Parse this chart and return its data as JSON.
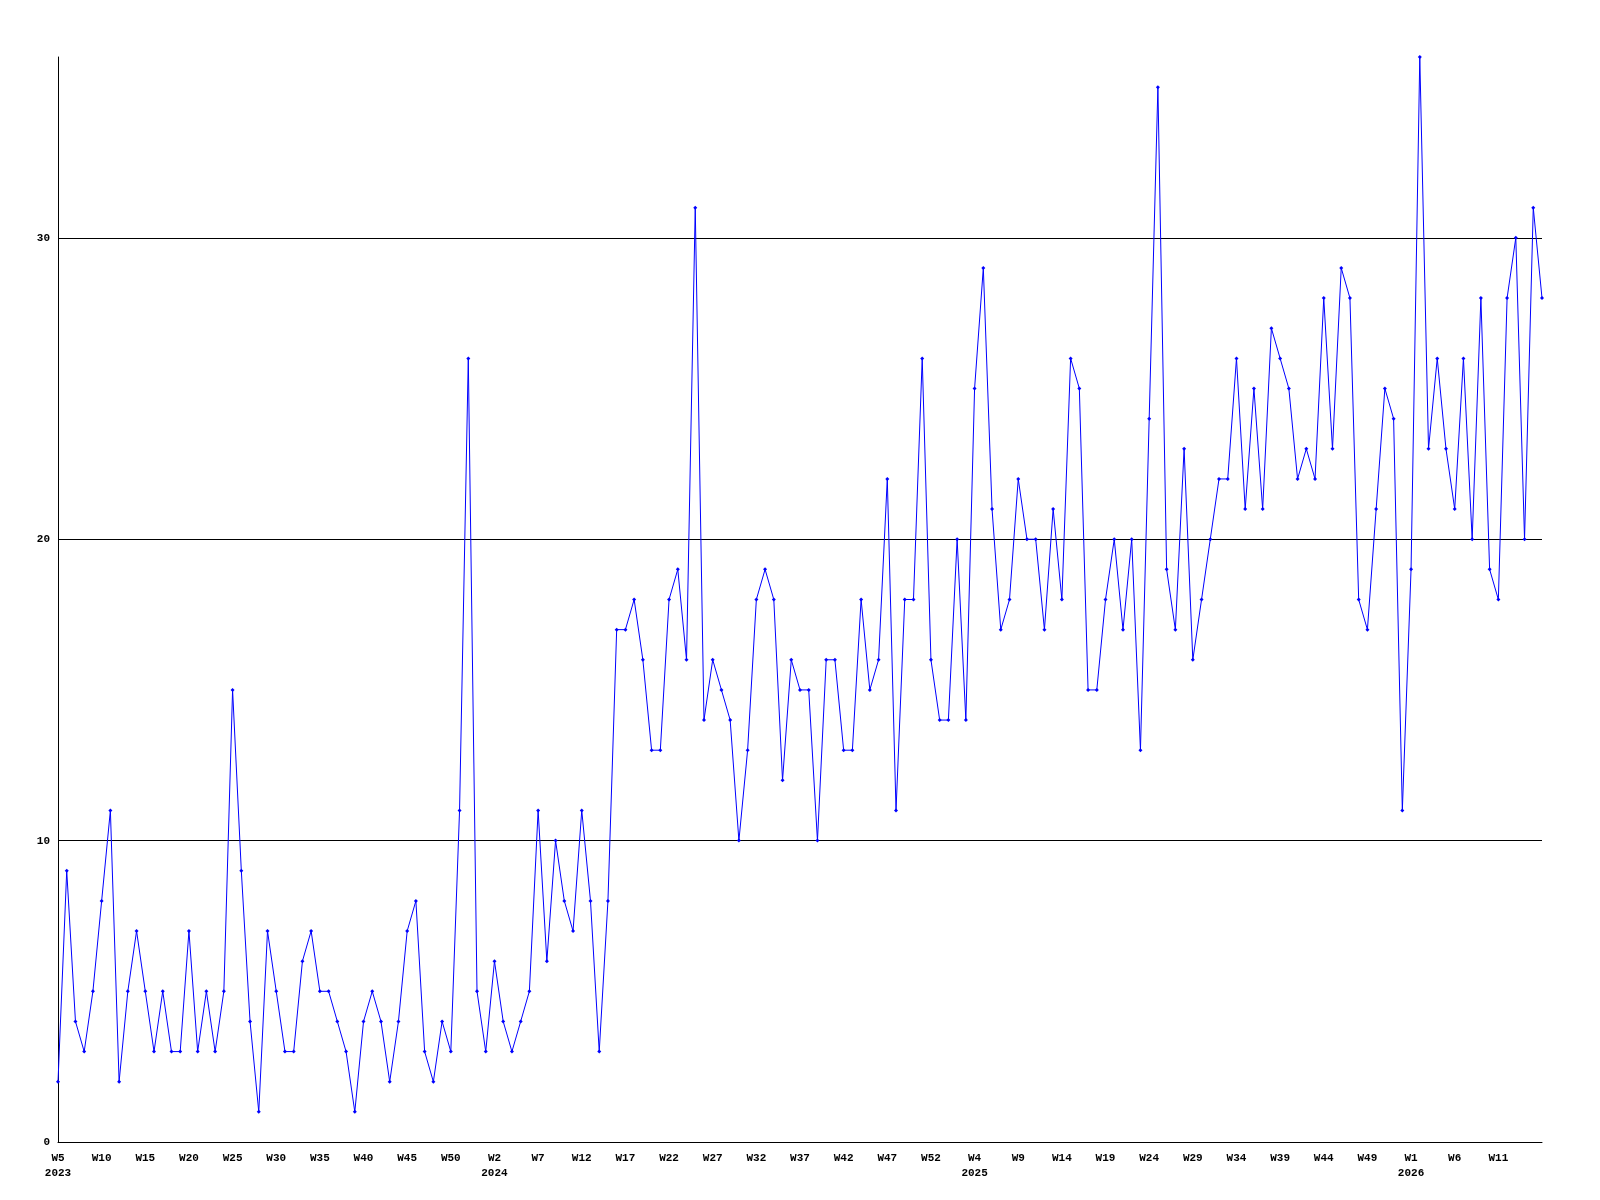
{
  "chart_data": {
    "type": "line",
    "categories": [
      "W5\n2023",
      null,
      null,
      null,
      null,
      "W10",
      null,
      null,
      null,
      null,
      "W15",
      null,
      null,
      null,
      null,
      "W20",
      null,
      null,
      null,
      null,
      "W25",
      null,
      null,
      null,
      null,
      "W30",
      null,
      null,
      null,
      null,
      "W35",
      null,
      null,
      null,
      null,
      "W40",
      null,
      null,
      null,
      null,
      "W45",
      null,
      null,
      null,
      null,
      "W50",
      null,
      null,
      null,
      null,
      "W2\n2024",
      null,
      null,
      null,
      null,
      "W7",
      null,
      null,
      null,
      null,
      "W12",
      null,
      null,
      null,
      null,
      "W17",
      null,
      null,
      null,
      null,
      "W22",
      null,
      null,
      null,
      null,
      "W27",
      null,
      null,
      null,
      null,
      "W32",
      null,
      null,
      null,
      null,
      "W37",
      null,
      null,
      null,
      null,
      "W42",
      null,
      null,
      null,
      null,
      "W47",
      null,
      null,
      null,
      null,
      "W52",
      null,
      null,
      null,
      null,
      "W4\n2025",
      null,
      null,
      null,
      null,
      "W9",
      null,
      null,
      null,
      null,
      "W14",
      null,
      null,
      null,
      null,
      "W19",
      null,
      null,
      null,
      null,
      "W24",
      null,
      null,
      null,
      null,
      "W29",
      null,
      null,
      null,
      null,
      "W34",
      null,
      null,
      null,
      null,
      "W39",
      null,
      null,
      null,
      null,
      "W44",
      null,
      null,
      null,
      null,
      "W49",
      null,
      null,
      null,
      null,
      "W1\n2026",
      null,
      null,
      null,
      null,
      "W6",
      null,
      null,
      null,
      null,
      "W11",
      null,
      null,
      null,
      null,
      null
    ],
    "series": [
      {
        "color": "#0000ff",
        "values": [
          2,
          9,
          4,
          3,
          5,
          8,
          11,
          2,
          5,
          7,
          5,
          3,
          5,
          3,
          3,
          7,
          3,
          5,
          3,
          5,
          15,
          9,
          4,
          1,
          7,
          5,
          3,
          3,
          6,
          7,
          5,
          5,
          4,
          3,
          1,
          4,
          5,
          4,
          2,
          4,
          7,
          8,
          3,
          2,
          4,
          3,
          11,
          26,
          5,
          3,
          6,
          4,
          3,
          4,
          5,
          11,
          6,
          10,
          8,
          7,
          11,
          8,
          3,
          8,
          17,
          17,
          18,
          16,
          13,
          13,
          18,
          19,
          16,
          31,
          14,
          16,
          15,
          14,
          10,
          13,
          18,
          19,
          18,
          12,
          16,
          15,
          15,
          10,
          16,
          16,
          13,
          13,
          18,
          15,
          16,
          22,
          11,
          18,
          18,
          26,
          16,
          14,
          14,
          20,
          14,
          25,
          29,
          21,
          17,
          18,
          22,
          20,
          20,
          17,
          21,
          18,
          26,
          25,
          15,
          15,
          18,
          20,
          17,
          20,
          13,
          24,
          35,
          19,
          17,
          23,
          16,
          18,
          20,
          22,
          22,
          26,
          21,
          25,
          21,
          27,
          26,
          25,
          22,
          23,
          22,
          28,
          23,
          29,
          28,
          18,
          17,
          21,
          25,
          24,
          11,
          19,
          36,
          23,
          26,
          23,
          21,
          26,
          20,
          28,
          19,
          18,
          28,
          30,
          20,
          31,
          28
        ]
      }
    ],
    "ylim": [
      0,
      36
    ],
    "yticks": [
      0,
      10,
      20,
      30
    ],
    "grid": "y",
    "marker": "diamond",
    "line_style": "solid"
  }
}
